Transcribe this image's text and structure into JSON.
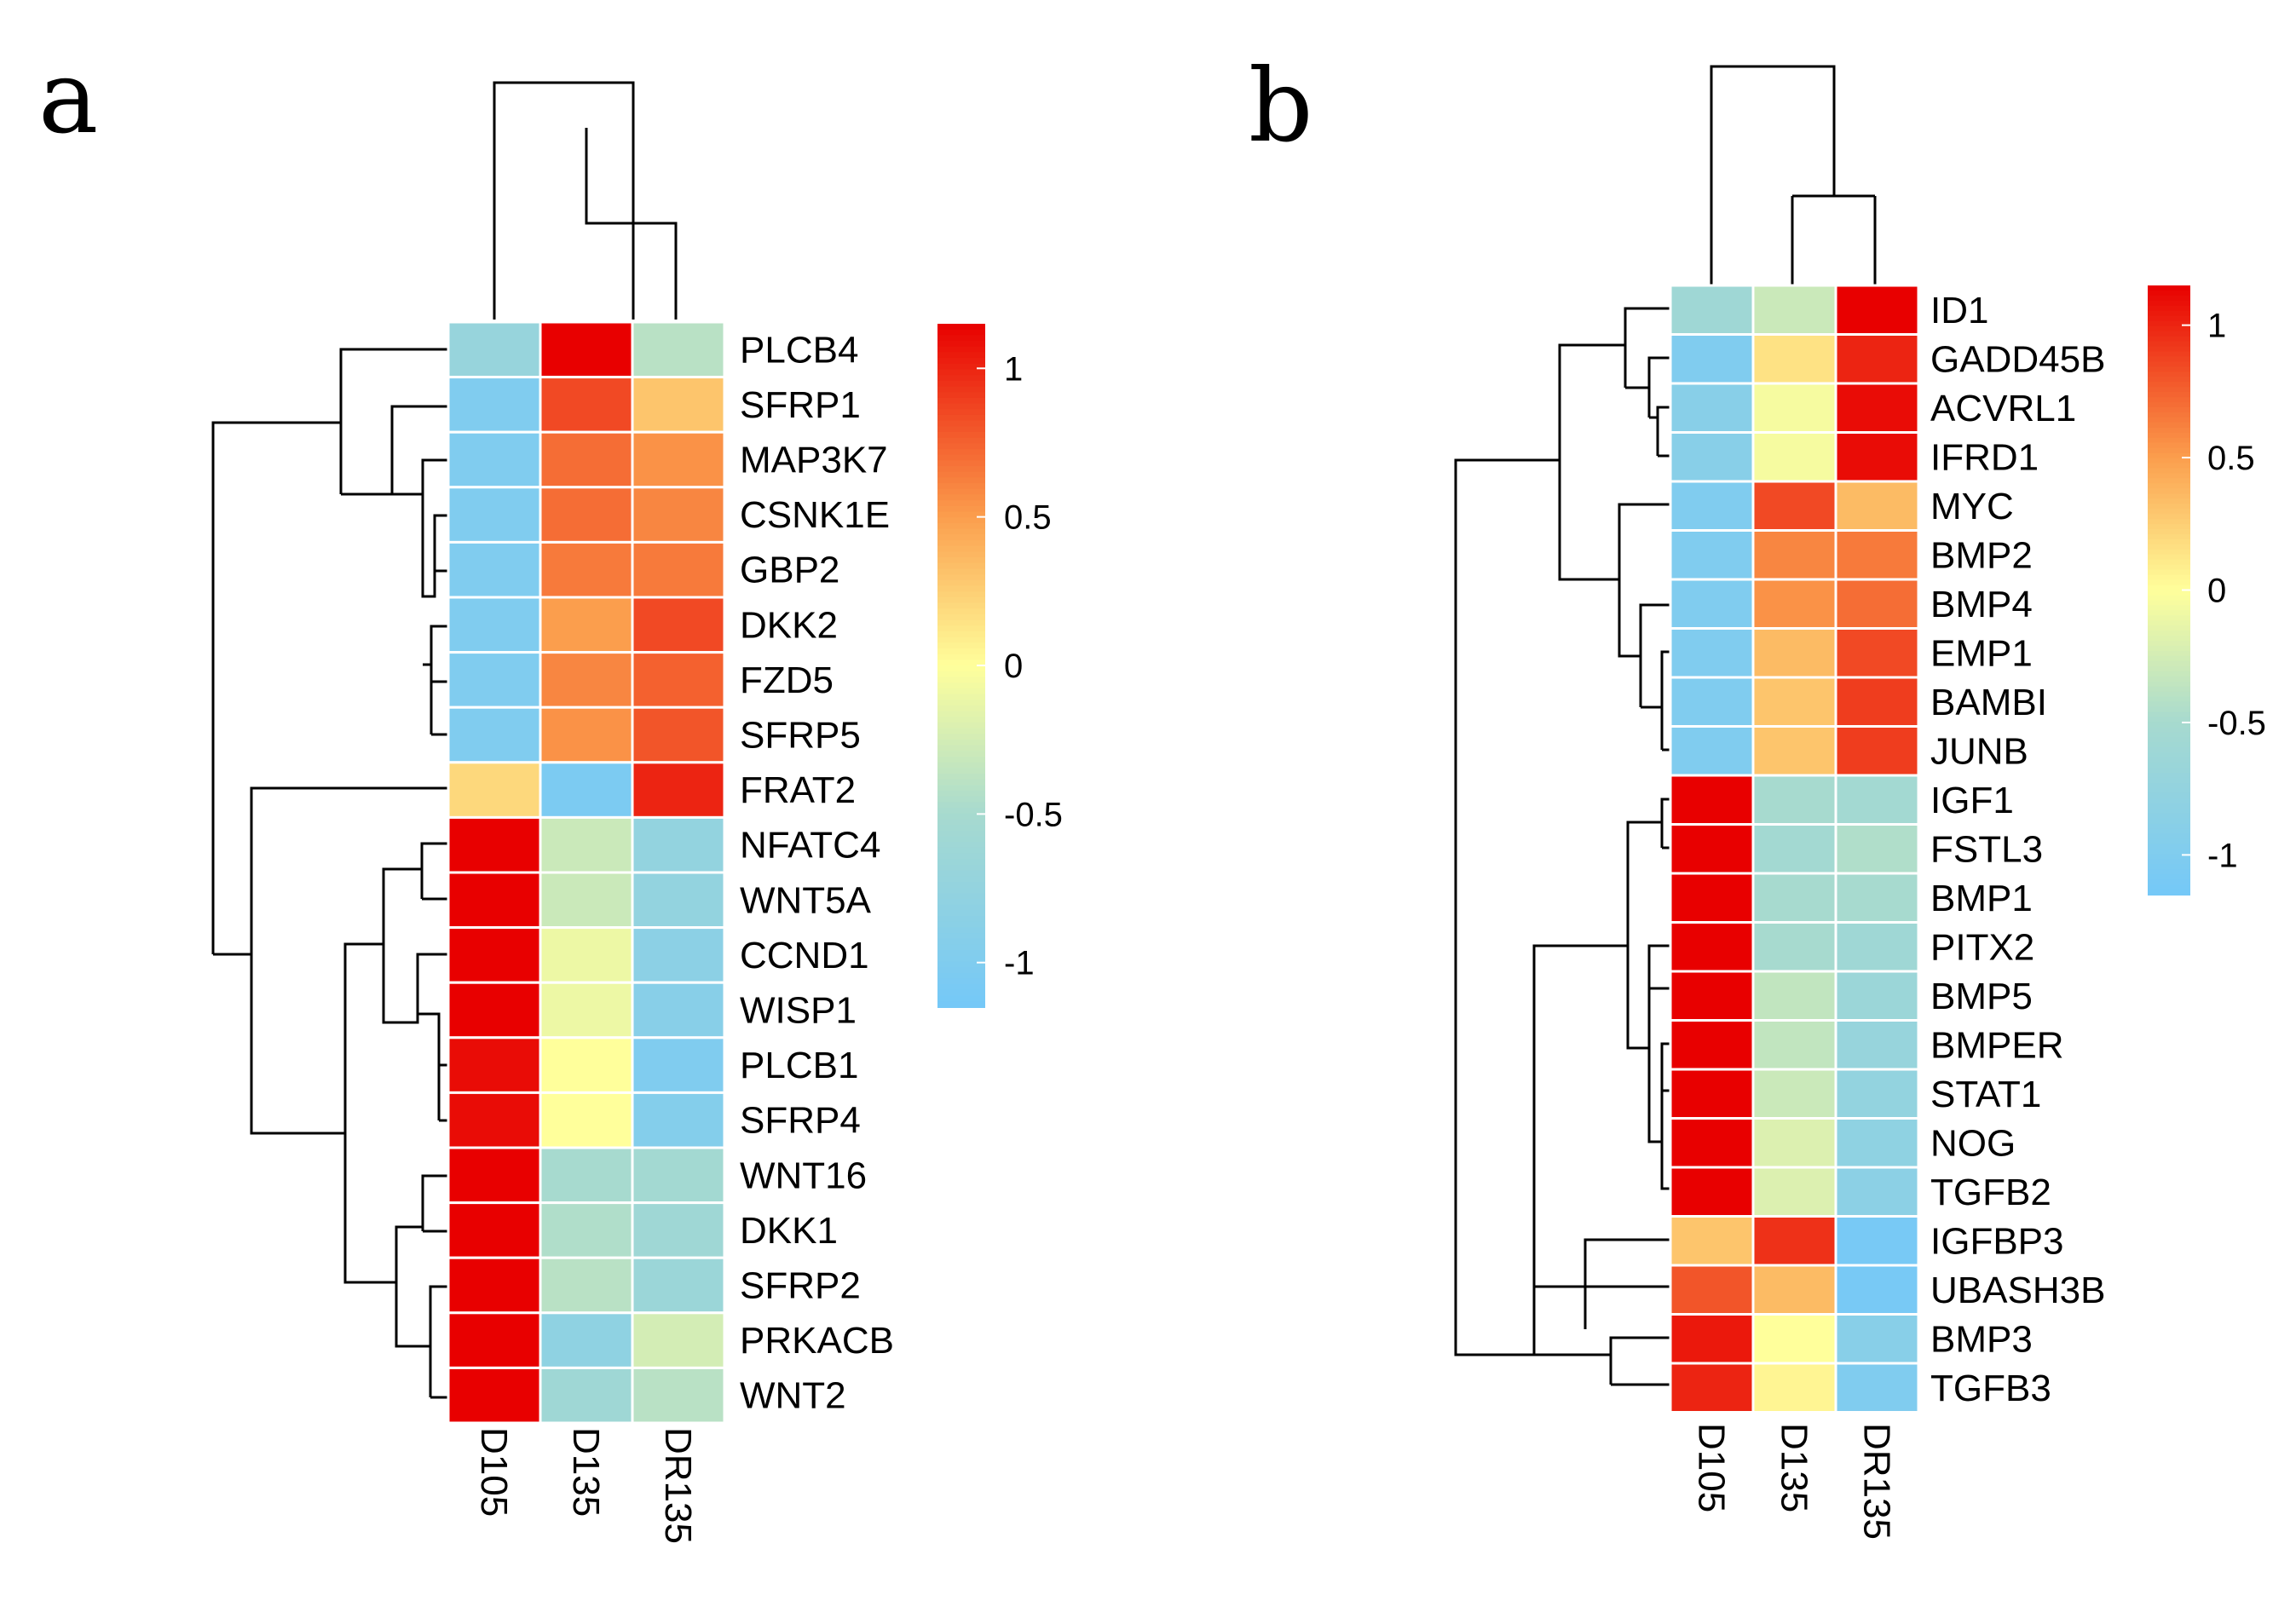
{
  "colormap": {
    "stops": [
      {
        "value": -1.15,
        "color": "#74c8f8"
      },
      {
        "value": -0.5,
        "color": "#a7dacf"
      },
      {
        "value": 0,
        "color": "#ffff9b"
      },
      {
        "value": 0.5,
        "color": "#fb9e4d"
      },
      {
        "value": 1.15,
        "color": "#e80000"
      }
    ]
  },
  "chart_data": [
    {
      "type": "heatmap",
      "panel_label": "a",
      "columns": [
        "D105",
        "D135",
        "DR135"
      ],
      "rows": [
        "PLCB4",
        "SFRP1",
        "MAP3K7",
        "CSNK1E",
        "GBP2",
        "DKK2",
        "FZD5",
        "SFRP5",
        "FRAT2",
        "NFATC4",
        "WNT5A",
        "CCND1",
        "WISP1",
        "PLCB1",
        "SFRP4",
        "WNT16",
        "DKK1",
        "SFRP2",
        "PRKACB",
        "WNT2"
      ],
      "values": [
        [
          -0.7,
          1.15,
          -0.4
        ],
        [
          -1.0,
          0.85,
          0.3
        ],
        [
          -1.0,
          0.7,
          0.55
        ],
        [
          -1.0,
          0.7,
          0.6
        ],
        [
          -1.0,
          0.65,
          0.65
        ],
        [
          -1.0,
          0.5,
          0.85
        ],
        [
          -1.0,
          0.6,
          0.75
        ],
        [
          -1.0,
          0.55,
          0.8
        ],
        [
          0.2,
          -1.05,
          1.0
        ],
        [
          1.15,
          -0.3,
          -0.75
        ],
        [
          1.15,
          -0.3,
          -0.75
        ],
        [
          1.15,
          -0.1,
          -0.85
        ],
        [
          1.15,
          -0.1,
          -0.9
        ],
        [
          1.1,
          0.0,
          -1.0
        ],
        [
          1.1,
          0.0,
          -0.95
        ],
        [
          1.15,
          -0.5,
          -0.55
        ],
        [
          1.15,
          -0.45,
          -0.6
        ],
        [
          1.15,
          -0.4,
          -0.65
        ],
        [
          1.15,
          -0.8,
          -0.25
        ],
        [
          1.15,
          -0.6,
          -0.4
        ]
      ],
      "colorbar": {
        "range": [
          -1.15,
          1.15
        ],
        "ticks": [
          1,
          0.5,
          0,
          -0.5,
          -1
        ],
        "tick_labels": [
          "1",
          "0.5",
          "0",
          "-0.5",
          "-1"
        ]
      }
    },
    {
      "type": "heatmap",
      "panel_label": "b",
      "columns": [
        "D105",
        "D135",
        "DR135"
      ],
      "rows": [
        "ID1",
        "GADD45B",
        "ACVRL1",
        "IFRD1",
        "MYC",
        "BMP2",
        "BMP4",
        "EMP1",
        "BAMBI",
        "JUNB",
        "IGF1",
        "FSTL3",
        "BMP1",
        "PITX2",
        "BMP5",
        "BMPER",
        "STAT1",
        "NOG",
        "TGFB2",
        "IGFBP3",
        "UBASH3B",
        "BMP3",
        "TGFB3"
      ],
      "values": [
        [
          -0.6,
          -0.3,
          1.15
        ],
        [
          -1.0,
          0.15,
          1.0
        ],
        [
          -0.9,
          -0.05,
          1.1
        ],
        [
          -0.9,
          -0.05,
          1.1
        ],
        [
          -1.0,
          0.85,
          0.35
        ],
        [
          -1.0,
          0.6,
          0.65
        ],
        [
          -1.0,
          0.55,
          0.7
        ],
        [
          -1.0,
          0.35,
          0.85
        ],
        [
          -1.0,
          0.3,
          0.9
        ],
        [
          -1.0,
          0.3,
          0.9
        ],
        [
          1.15,
          -0.5,
          -0.55
        ],
        [
          1.15,
          -0.55,
          -0.45
        ],
        [
          1.15,
          -0.5,
          -0.5
        ],
        [
          1.15,
          -0.5,
          -0.6
        ],
        [
          1.15,
          -0.35,
          -0.65
        ],
        [
          1.15,
          -0.35,
          -0.7
        ],
        [
          1.15,
          -0.3,
          -0.75
        ],
        [
          1.15,
          -0.2,
          -0.8
        ],
        [
          1.15,
          -0.2,
          -0.85
        ],
        [
          0.3,
          0.95,
          -1.1
        ],
        [
          0.8,
          0.35,
          -1.1
        ],
        [
          1.05,
          0.0,
          -0.9
        ],
        [
          1.0,
          0.05,
          -1.0
        ]
      ],
      "colorbar": {
        "range": [
          -1.15,
          1.15
        ],
        "ticks": [
          1,
          0.5,
          0,
          -0.5,
          -1
        ],
        "tick_labels": [
          "1",
          "0.5",
          "0",
          "-0.5",
          "-1"
        ]
      }
    }
  ]
}
